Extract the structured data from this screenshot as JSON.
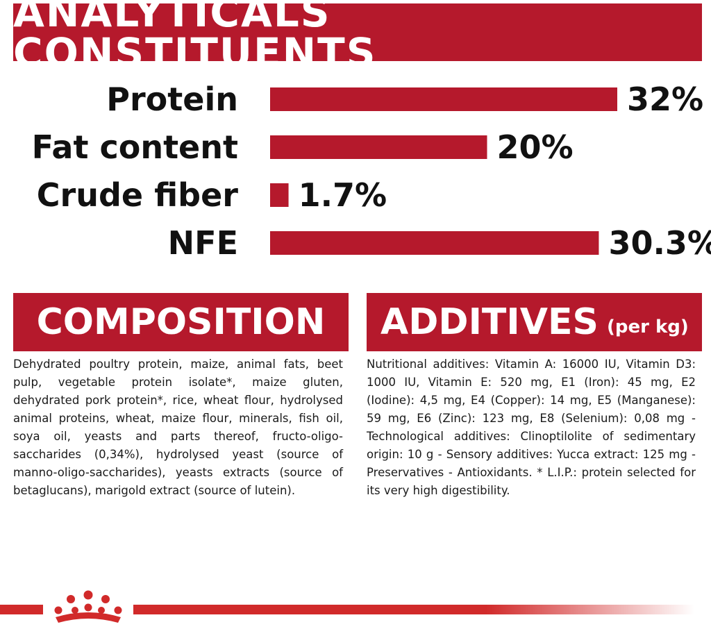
{
  "title": "ANALYTICALS CONSTITUENTS",
  "colors": {
    "brand_red": "#b5192c",
    "text": "#111111",
    "footer_red": "#d12a2a"
  },
  "chart_data": {
    "type": "bar",
    "orientation": "horizontal",
    "categories": [
      "Protein",
      "Fat content",
      "Crude fiber",
      "NFE"
    ],
    "values": [
      32,
      20,
      1.7,
      30.3
    ],
    "value_labels": [
      "32%",
      "20%",
      "1.7%",
      "30.3%"
    ],
    "unit": "%",
    "xlim": [
      0,
      32
    ],
    "grid": false
  },
  "composition": {
    "heading": "COMPOSITION",
    "text": "Dehydrated poultry protein, maize, animal fats, beet pulp, vegetable protein isolate*, maize gluten, dehydrated pork protein*, rice, wheat flour, hydrolysed animal proteins, wheat, maize flour, minerals, fish oil, soya oil, yeasts and parts thereof, fructo-oligo-saccharides (0,34%), hydrolysed yeast (source of manno-oligo-saccharides), yeasts extracts (source of betaglucans), marigold extract (source of lutein)."
  },
  "additives": {
    "heading": "ADDITIVES",
    "heading_suffix": "(per kg)",
    "text": "Nutritional additives: Vitamin A: 16000 IU, Vitamin D3: 1000 IU, Vitamin E: 520 mg, E1 (Iron): 45 mg, E2 (Iodine): 4,5 mg, E4 (Copper): 14 mg, E5 (Manganese): 59 mg, E6 (Zinc): 123 mg, E8 (Selenium): 0,08 mg - Technological additives: Clinoptilolite of sedimentary origin: 10 g - Sensory additives: Yucca extract: 125 mg - Preservatives - Antioxidants. * L.I.P.: protein selected for its very high digestibility."
  },
  "footer": {
    "logo_icon": "crown-icon"
  }
}
